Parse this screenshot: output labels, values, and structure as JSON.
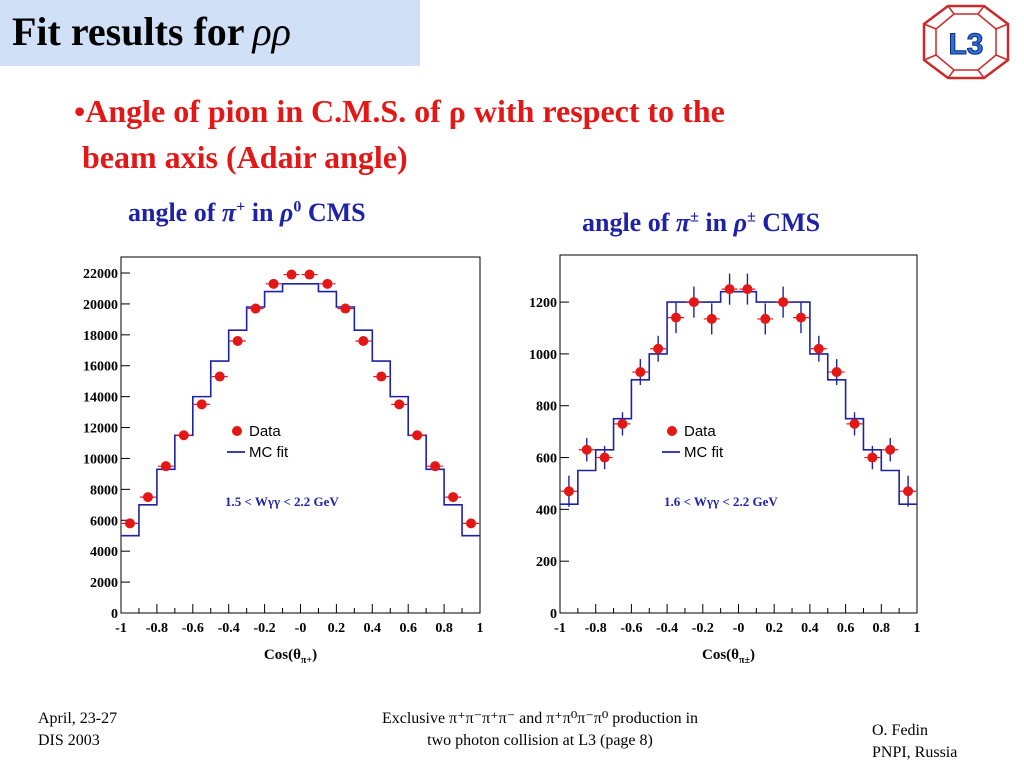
{
  "slide": {
    "title": "Fit results for",
    "title_symbol": "ρρ",
    "bullet_line1": "•Angle of pion in C.M.S. of ρ with respect to the",
    "bullet_line2": "beam  axis (Adair angle)",
    "logo_text": "L3"
  },
  "captions": {
    "left": {
      "prefix": "angle of ",
      "pion": "π",
      "pion_charge": "+",
      "mid": " in ",
      "rho": "ρ",
      "rho_charge": "0",
      "suffix": " CMS"
    },
    "right": {
      "prefix": "angle of ",
      "pion": "π",
      "pion_charge": "±",
      "mid": " in ",
      "rho": "ρ",
      "rho_charge": "±",
      "suffix": " CMS"
    }
  },
  "footer": {
    "left_line1": "April, 23-27",
    "left_line2": "DIS 2003",
    "center_line1": "Exclusive     π⁺π⁻π⁺π⁻ and π⁺π⁰π⁻π⁰ production in",
    "center_line2": "two photon collision at L3  (page 8)",
    "right_line1": "O. Fedin",
    "right_line2": "PNPI, Russia"
  },
  "chart_data": [
    {
      "type": "histogram",
      "xlabel": "Cos(θπ+)",
      "xlabel_main": "Cos(θ",
      "xlabel_sub": "π+",
      "xlabel_end": ")",
      "xlim": [
        -1,
        1
      ],
      "ylim": [
        0,
        22000
      ],
      "xticks": [
        "-1",
        "-0.8",
        "-0.6",
        "-0.4",
        "-0.2",
        "-0",
        "0.2",
        "0.4",
        "0.6",
        "0.8",
        "1"
      ],
      "yticks": [
        "0",
        "2000",
        "4000",
        "6000",
        "8000",
        "10000",
        "12000",
        "14000",
        "16000",
        "18000",
        "20000",
        "22000"
      ],
      "annotation": "1.5 < Wγγ < 2.2 GeV",
      "legend": {
        "position": "middle-left",
        "entries": [
          "Data",
          "MC fit"
        ]
      },
      "bin_edges": [
        -1.0,
        -0.9,
        -0.8,
        -0.7,
        -0.6,
        -0.5,
        -0.4,
        -0.3,
        -0.2,
        -0.1,
        0.0,
        0.1,
        0.2,
        0.3,
        0.4,
        0.5,
        0.6,
        0.7,
        0.8,
        0.9,
        1.0
      ],
      "series": [
        {
          "name": "Data",
          "style": "points",
          "x": [
            -0.95,
            -0.85,
            -0.75,
            -0.65,
            -0.55,
            -0.45,
            -0.35,
            -0.25,
            -0.15,
            -0.05,
            0.05,
            0.15,
            0.25,
            0.35,
            0.45,
            0.55,
            0.65,
            0.75,
            0.85,
            0.95
          ],
          "values": [
            5800,
            7500,
            9500,
            11500,
            13500,
            15300,
            17600,
            19700,
            21300,
            21900,
            21900,
            21300,
            19700,
            17600,
            15300,
            13500,
            11500,
            9500,
            7500,
            5800
          ]
        },
        {
          "name": "MC fit",
          "style": "step",
          "values": [
            5000,
            7000,
            9300,
            11500,
            14000,
            16300,
            18300,
            19800,
            20800,
            21300,
            21300,
            20800,
            19800,
            18300,
            16300,
            14000,
            11500,
            9300,
            7000,
            5000
          ]
        }
      ]
    },
    {
      "type": "histogram",
      "xlabel": "Cos(θπ±)",
      "xlabel_main": "Cos(θ",
      "xlabel_sub": "π±",
      "xlabel_end": ")",
      "xlim": [
        -1,
        1
      ],
      "ylim": [
        0,
        1320
      ],
      "xticks": [
        "-1",
        "-0.8",
        "-0.6",
        "-0.4",
        "-0.2",
        "-0",
        "0.2",
        "0.4",
        "0.6",
        "0.8",
        "1"
      ],
      "yticks": [
        "0",
        "200",
        "400",
        "600",
        "800",
        "1000",
        "1200"
      ],
      "annotation": "1.6 < Wγγ < 2.2 GeV",
      "legend": {
        "position": "middle-left",
        "entries": [
          "Data",
          "MC fit"
        ]
      },
      "bin_edges": [
        -1.0,
        -0.9,
        -0.8,
        -0.7,
        -0.6,
        -0.5,
        -0.4,
        -0.3,
        -0.2,
        -0.1,
        0.0,
        0.1,
        0.2,
        0.3,
        0.4,
        0.5,
        0.6,
        0.7,
        0.8,
        0.9,
        1.0
      ],
      "series": [
        {
          "name": "Data",
          "style": "points",
          "x": [
            -0.95,
            -0.85,
            -0.75,
            -0.65,
            -0.55,
            -0.45,
            -0.35,
            -0.25,
            -0.15,
            -0.05,
            0.05,
            0.15,
            0.25,
            0.35,
            0.45,
            0.55,
            0.65,
            0.75,
            0.85,
            0.95
          ],
          "values": [
            470,
            630,
            600,
            730,
            930,
            1020,
            1140,
            1200,
            1135,
            1250,
            1250,
            1135,
            1200,
            1140,
            1020,
            930,
            730,
            600,
            630,
            470
          ],
          "errors": [
            60,
            45,
            45,
            45,
            50,
            50,
            60,
            60,
            60,
            60,
            60,
            60,
            60,
            60,
            50,
            50,
            45,
            45,
            45,
            60
          ]
        },
        {
          "name": "MC fit",
          "style": "step",
          "values": [
            420,
            550,
            630,
            750,
            900,
            1000,
            1200,
            1200,
            1200,
            1240,
            1240,
            1200,
            1200,
            1200,
            1000,
            900,
            750,
            630,
            550,
            420
          ]
        }
      ]
    }
  ],
  "colors": {
    "title_bg": "#cfe0f7",
    "bullet": "#e41717",
    "caption": "#1d22a6",
    "data_points": "#e41717",
    "mc_fit": "#1d22a6",
    "logo_red": "#cc2a2a",
    "logo_blue": "#2f6fd6"
  }
}
